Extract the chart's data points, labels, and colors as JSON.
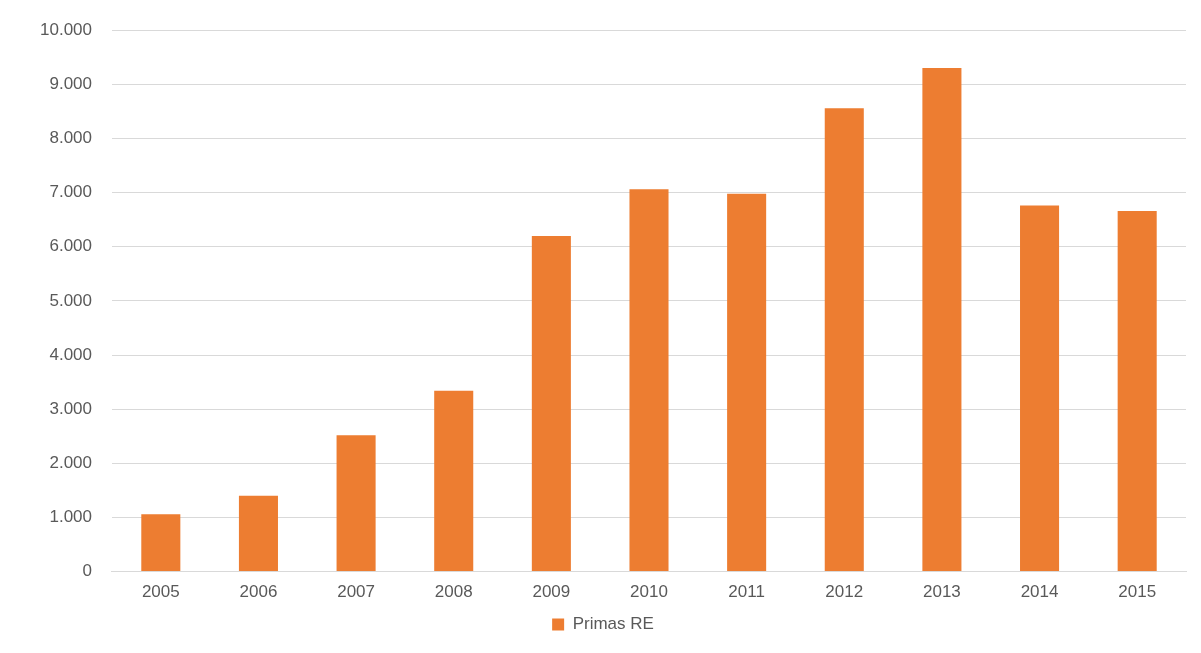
{
  "chart_data": {
    "type": "bar",
    "categories": [
      "2005",
      "2006",
      "2007",
      "2008",
      "2009",
      "2010",
      "2011",
      "2012",
      "2013",
      "2014",
      "2015"
    ],
    "series": [
      {
        "name": "Primas RE",
        "color": "#ed7d31",
        "values": [
          1060,
          1400,
          2520,
          3340,
          6200,
          7060,
          6980,
          8560,
          9300,
          6760,
          6660
        ]
      }
    ],
    "ylim": [
      0,
      10000
    ],
    "yticks": [
      {
        "value": 0,
        "label": "0"
      },
      {
        "value": 1000,
        "label": "1.000"
      },
      {
        "value": 2000,
        "label": "2.000"
      },
      {
        "value": 3000,
        "label": "3.000"
      },
      {
        "value": 4000,
        "label": "4.000"
      },
      {
        "value": 5000,
        "label": "5.000"
      },
      {
        "value": 6000,
        "label": "6.000"
      },
      {
        "value": 7000,
        "label": "7.000"
      },
      {
        "value": 8000,
        "label": "8.000"
      },
      {
        "value": 9000,
        "label": "9.000"
      },
      {
        "value": 10000,
        "label": "10.000"
      }
    ],
    "grid": "y",
    "legend": "bottom"
  }
}
